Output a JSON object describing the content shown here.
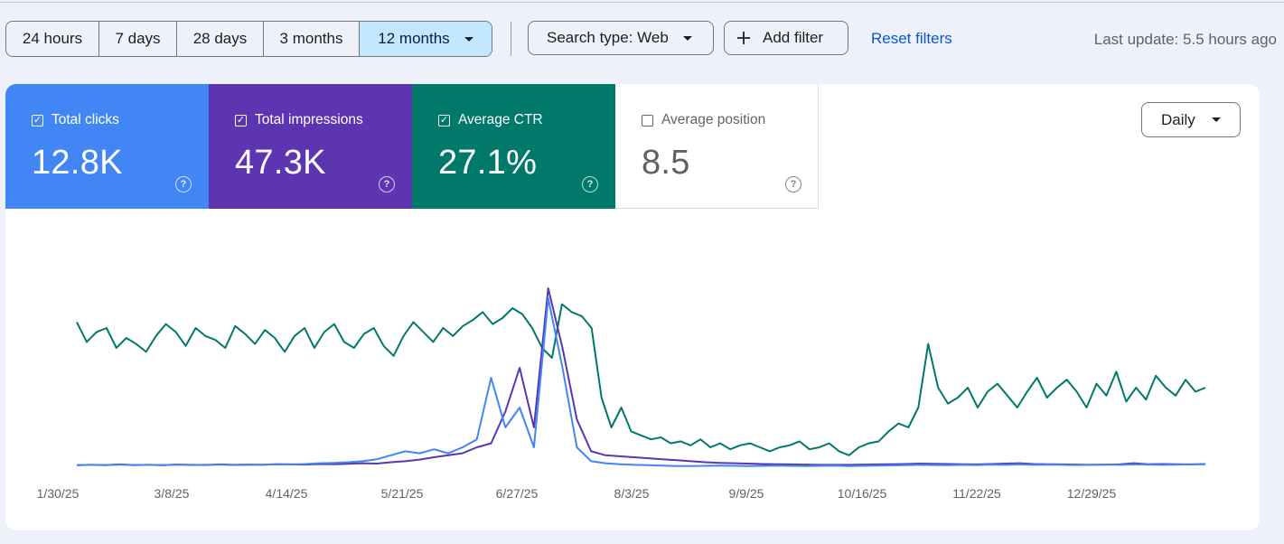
{
  "toolbar": {
    "date_ranges": [
      "24 hours",
      "7 days",
      "28 days",
      "3 months",
      "12 months"
    ],
    "selected_range": "12 months",
    "search_type": "Search type: Web",
    "add_filter": "Add filter",
    "reset_filters": "Reset filters",
    "last_update": "Last update: 5.5 hours ago"
  },
  "metrics": {
    "clicks": {
      "label": "Total clicks",
      "value": "12.8K",
      "checked": true,
      "color": "#4285f4"
    },
    "impressions": {
      "label": "Total impressions",
      "value": "47.3K",
      "checked": true,
      "color": "#5e35b1"
    },
    "ctr": {
      "label": "Average CTR",
      "value": "27.1%",
      "checked": true,
      "color": "#00796b"
    },
    "position": {
      "label": "Average position",
      "value": "8.5",
      "checked": false
    }
  },
  "granularity": "Daily",
  "chart_data": {
    "type": "line",
    "x_tick_labels": [
      "1/30/25",
      "3/8/25",
      "4/14/25",
      "5/21/25",
      "6/27/25",
      "8/3/25",
      "9/9/25",
      "10/16/25",
      "11/22/25",
      "12/29/25"
    ],
    "x_range": [
      "1/30/25",
      "1/24/26"
    ],
    "y_axis_labels": "none",
    "grid": false,
    "legend": "metric tiles above chart",
    "series": [
      {
        "name": "Average CTR",
        "color": "#00796b",
        "values": [
          0.73,
          0.63,
          0.68,
          0.7,
          0.6,
          0.65,
          0.62,
          0.58,
          0.66,
          0.72,
          0.68,
          0.61,
          0.7,
          0.66,
          0.64,
          0.6,
          0.71,
          0.67,
          0.62,
          0.69,
          0.65,
          0.58,
          0.66,
          0.7,
          0.6,
          0.68,
          0.72,
          0.63,
          0.6,
          0.67,
          0.7,
          0.61,
          0.56,
          0.66,
          0.73,
          0.68,
          0.63,
          0.7,
          0.66,
          0.71,
          0.74,
          0.78,
          0.72,
          0.75,
          0.8,
          0.77,
          0.7,
          0.6,
          0.55,
          0.82,
          0.78,
          0.76,
          0.7,
          0.35,
          0.2,
          0.3,
          0.18,
          0.16,
          0.14,
          0.15,
          0.12,
          0.13,
          0.11,
          0.14,
          0.1,
          0.12,
          0.09,
          0.11,
          0.12,
          0.1,
          0.08,
          0.1,
          0.11,
          0.13,
          0.09,
          0.1,
          0.12,
          0.08,
          0.06,
          0.1,
          0.12,
          0.13,
          0.18,
          0.22,
          0.2,
          0.3,
          0.62,
          0.4,
          0.32,
          0.35,
          0.4,
          0.3,
          0.38,
          0.42,
          0.36,
          0.3,
          0.38,
          0.45,
          0.35,
          0.4,
          0.44,
          0.38,
          0.3,
          0.42,
          0.36,
          0.48,
          0.33,
          0.4,
          0.34,
          0.46,
          0.4,
          0.36,
          0.44,
          0.38,
          0.4
        ]
      },
      {
        "name": "Total impressions",
        "color": "#5e35b1",
        "values": [
          0.01,
          0.012,
          0.01,
          0.014,
          0.011,
          0.012,
          0.01,
          0.013,
          0.012,
          0.011,
          0.014,
          0.012,
          0.013,
          0.012,
          0.015,
          0.014,
          0.013,
          0.016,
          0.015,
          0.017,
          0.02,
          0.018,
          0.025,
          0.03,
          0.038,
          0.05,
          0.06,
          0.07,
          0.1,
          0.12,
          0.28,
          0.5,
          0.2,
          0.9,
          0.6,
          0.24,
          0.08,
          0.06,
          0.055,
          0.05,
          0.045,
          0.04,
          0.035,
          0.03,
          0.025,
          0.022,
          0.02,
          0.018,
          0.016,
          0.015,
          0.014,
          0.013,
          0.012,
          0.012,
          0.012,
          0.013,
          0.014,
          0.015,
          0.016,
          0.018,
          0.017,
          0.016,
          0.015,
          0.014,
          0.016,
          0.018,
          0.02,
          0.016,
          0.015,
          0.014,
          0.013,
          0.012,
          0.013,
          0.014,
          0.02,
          0.015,
          0.016,
          0.015,
          0.014,
          0.016
        ]
      },
      {
        "name": "Total clicks",
        "color": "#4285f4",
        "values": [
          0.01,
          0.012,
          0.011,
          0.013,
          0.01,
          0.012,
          0.01,
          0.013,
          0.011,
          0.012,
          0.013,
          0.011,
          0.012,
          0.013,
          0.015,
          0.014,
          0.016,
          0.02,
          0.022,
          0.025,
          0.03,
          0.04,
          0.06,
          0.08,
          0.07,
          0.09,
          0.07,
          0.1,
          0.14,
          0.45,
          0.2,
          0.3,
          0.1,
          0.85,
          0.5,
          0.1,
          0.03,
          0.02,
          0.015,
          0.012,
          0.01,
          0.008,
          0.006,
          0.006,
          0.007,
          0.008,
          0.007,
          0.006,
          0.007,
          0.008,
          0.007,
          0.006,
          0.007,
          0.008,
          0.006,
          0.007,
          0.008,
          0.009,
          0.01,
          0.012,
          0.011,
          0.01,
          0.012,
          0.011,
          0.013,
          0.012,
          0.014,
          0.012,
          0.013,
          0.012,
          0.011,
          0.012,
          0.013,
          0.012,
          0.014,
          0.013,
          0.012,
          0.013,
          0.014,
          0.015
        ]
      }
    ]
  }
}
